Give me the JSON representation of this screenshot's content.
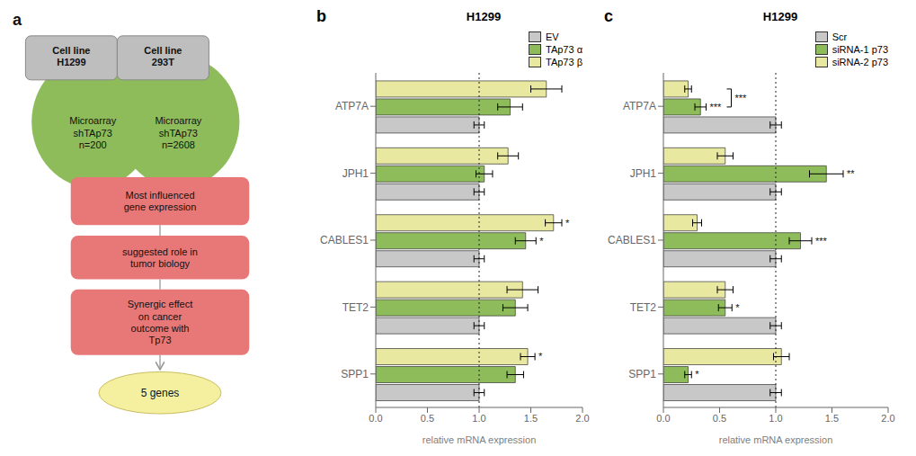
{
  "chart_data": [
    {
      "type": "diagram",
      "annotations": [
        {
          "text": "a"
        },
        {
          "text": "Cell line\nH1299",
          "color": "#bebebe"
        },
        {
          "text": "Cell line\n293T",
          "color": "#bebebe"
        },
        {
          "text": "Microarray\nshTAp73\nn=200",
          "color": "#8fbc5a"
        },
        {
          "text": "Microarray\nshTAp73\nn=2608",
          "color": "#8fbc5a"
        },
        {
          "text": "Most influenced\ngene expression",
          "color": "#e87878"
        },
        {
          "text": "suggested role in\ntumor biology",
          "color": "#e87878"
        },
        {
          "text": "Synergic effect\non cancer\noutcome with\nTp73",
          "color": "#e87878"
        },
        {
          "text": "5 genes",
          "color": "#f5f0a0"
        }
      ]
    },
    {
      "type": "bar",
      "orientation": "horizontal",
      "title": "H1299",
      "xlabel": "relative mRNA expression",
      "categories": [
        "ATP7A",
        "JPH1",
        "CABLES1",
        "TET2",
        "SPP1"
      ],
      "xlim": [
        0.0,
        2.0
      ],
      "xticks": [
        {
          "value": 0.0,
          "label": "0.0"
        },
        {
          "value": 0.5,
          "label": "0.5"
        },
        {
          "value": 1.0,
          "label": "1.0"
        },
        {
          "value": 1.5,
          "label": "1.5"
        },
        {
          "value": 2.0,
          "label": "2.0"
        }
      ],
      "legend": "upper right",
      "grid": false,
      "series": [
        {
          "name": "EV",
          "color": "#c8c8c8",
          "values": [
            1.0,
            1.0,
            1.0,
            1.0,
            1.0
          ],
          "errors": [
            0.05,
            0.05,
            0.05,
            0.05,
            0.05
          ]
        },
        {
          "name": "TAp73 α",
          "color": "#8fbc5a",
          "values": [
            1.3,
            1.05,
            1.45,
            1.35,
            1.35
          ],
          "errors": [
            0.12,
            0.08,
            0.1,
            0.12,
            0.08
          ],
          "annotations": [
            null,
            null,
            "*",
            null,
            null
          ]
        },
        {
          "name": "TAp73 β",
          "color": "#e8e8a0",
          "values": [
            1.65,
            1.28,
            1.72,
            1.42,
            1.47
          ],
          "errors": [
            0.15,
            0.1,
            0.08,
            0.15,
            0.07
          ],
          "annotations": [
            null,
            null,
            "*",
            null,
            "*"
          ]
        }
      ],
      "annotations": [
        {
          "text": "b"
        },
        {
          "x": 1.0,
          "line_style": "dotted"
        }
      ]
    },
    {
      "type": "bar",
      "orientation": "horizontal",
      "title": "H1299",
      "xlabel": "relative mRNA expression",
      "categories": [
        "ATP7A",
        "JPH1",
        "CABLES1",
        "TET2",
        "SPP1"
      ],
      "xlim": [
        0.0,
        2.0
      ],
      "xticks": [
        {
          "value": 0.0,
          "label": "0.0"
        },
        {
          "value": 0.5,
          "label": "0.5"
        },
        {
          "value": 1.0,
          "label": "1.0"
        },
        {
          "value": 1.5,
          "label": "1.5"
        },
        {
          "value": 2.0,
          "label": "2.0"
        }
      ],
      "legend": "upper right",
      "grid": false,
      "series": [
        {
          "name": "Scr",
          "color": "#c8c8c8",
          "values": [
            1.0,
            1.0,
            1.0,
            1.0,
            1.0
          ],
          "errors": [
            0.05,
            0.05,
            0.05,
            0.05,
            0.05
          ]
        },
        {
          "name": "siRNA-1 p73",
          "color": "#8fbc5a",
          "values": [
            0.33,
            1.45,
            1.22,
            0.55,
            0.22
          ],
          "errors": [
            0.05,
            0.15,
            0.1,
            0.06,
            0.03
          ],
          "annotations": [
            "***",
            "**",
            "***",
            "*",
            "*"
          ]
        },
        {
          "name": "siRNA-2 p73",
          "color": "#e8e8a0",
          "values": [
            0.22,
            0.55,
            0.3,
            0.55,
            1.05
          ],
          "errors": [
            0.03,
            0.07,
            0.04,
            0.07,
            0.07
          ]
        }
      ],
      "annotations": [
        {
          "text": "c"
        },
        {
          "x": 1.0,
          "line_style": "dotted"
        },
        {
          "text": "***",
          "category": "ATP7A",
          "series": [
            "siRNA-1 p73",
            "siRNA-2 p73"
          ]
        }
      ]
    }
  ]
}
